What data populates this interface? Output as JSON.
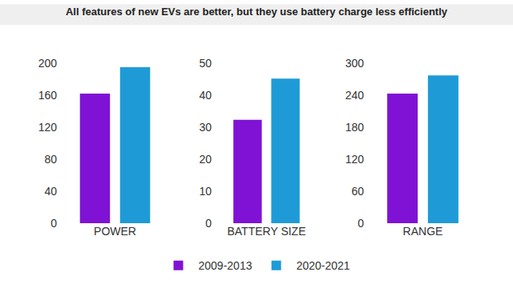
{
  "chart_data": [
    {
      "type": "bar",
      "title": "All features of new EVs are better, but they use battery charge less efficiently",
      "categories": [
        "POWER"
      ],
      "series": [
        {
          "name": "2009-2013",
          "color": "#7f12d4",
          "values": [
            162
          ]
        },
        {
          "name": "2020-2021",
          "color": "#1e9bd7",
          "values": [
            195
          ]
        }
      ],
      "ylim": [
        0,
        200
      ],
      "yticks": [
        0,
        40,
        80,
        120,
        160,
        200
      ],
      "grid": false,
      "legend": "bottom"
    },
    {
      "type": "bar",
      "categories": [
        "BATTERY SIZE"
      ],
      "series": [
        {
          "name": "2009-2013",
          "color": "#7f12d4",
          "values": [
            32.3
          ]
        },
        {
          "name": "2020-2021",
          "color": "#1e9bd7",
          "values": [
            45.2
          ]
        }
      ],
      "ylim": [
        0,
        50
      ],
      "yticks": [
        0,
        10,
        20,
        30,
        40,
        50
      ],
      "grid": false,
      "legend": "bottom"
    },
    {
      "type": "bar",
      "categories": [
        "RANGE"
      ],
      "series": [
        {
          "name": "2009-2013",
          "color": "#7f12d4",
          "values": [
            243
          ]
        },
        {
          "name": "2020-2021",
          "color": "#1e9bd7",
          "values": [
            277
          ]
        }
      ],
      "ylim": [
        0,
        300
      ],
      "yticks": [
        0,
        60,
        120,
        180,
        240,
        300
      ],
      "grid": false,
      "legend": "bottom"
    }
  ]
}
